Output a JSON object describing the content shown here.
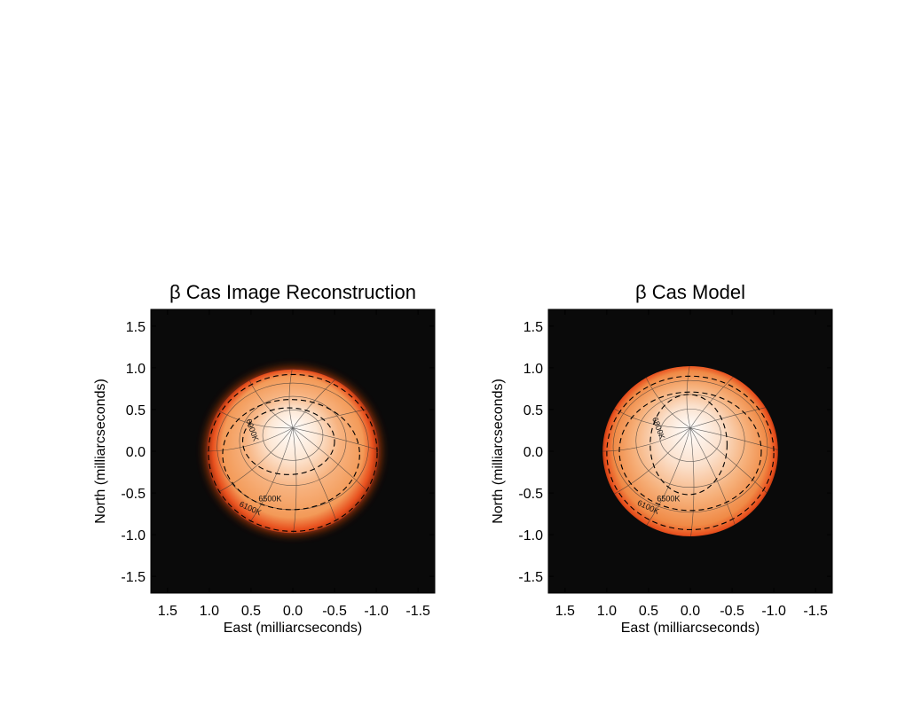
{
  "chart_data": [
    {
      "type": "heatmap",
      "title": "β Cas Image Reconstruction",
      "xlabel": "East (milliarcseconds)",
      "ylabel": "North (milliarcseconds)",
      "xlim": [
        1.7,
        -1.7
      ],
      "ylim": [
        -1.7,
        1.7
      ],
      "x_ticks": [
        1.5,
        1.0,
        0.5,
        0.0,
        -0.5,
        -1.0,
        -1.5
      ],
      "x_tick_labels": [
        "1.5",
        "1.0",
        "0.5",
        "0.0",
        "-0.5",
        "-1.0",
        "-1.5"
      ],
      "y_ticks": [
        1.5,
        1.0,
        0.5,
        0.0,
        -0.5,
        -1.0,
        -1.5
      ],
      "y_tick_labels": [
        "1.5",
        "1.0",
        "0.5",
        "0.0",
        "-0.5",
        "-1.0",
        "-1.5"
      ],
      "disk": {
        "center": [
          0.0,
          0.0
        ],
        "radius_x": 1.03,
        "radius_y": 0.98,
        "limb_blur": true
      },
      "pole": [
        0.0,
        0.28
      ],
      "contours": [
        {
          "label": "6900K",
          "cx": 0.05,
          "cy": 0.12,
          "rx": 0.55,
          "ry": 0.4
        },
        {
          "label": "6500K",
          "cx": 0.02,
          "cy": -0.04,
          "rx": 0.82,
          "ry": 0.66
        },
        {
          "label": "6100K",
          "cx": 0.0,
          "cy": -0.02,
          "rx": 1.01,
          "ry": 0.94
        }
      ],
      "colors": {
        "background": "#0a0a0a",
        "limb": "#e8501e",
        "mid": "#f6a060",
        "center": "#ffffff"
      }
    },
    {
      "type": "heatmap",
      "title": "β Cas Model",
      "xlabel": "East (milliarcseconds)",
      "ylabel": "North (milliarcseconds)",
      "xlim": [
        1.7,
        -1.7
      ],
      "ylim": [
        -1.7,
        1.7
      ],
      "x_ticks": [
        1.5,
        1.0,
        0.5,
        0.0,
        -0.5,
        -1.0,
        -1.5
      ],
      "x_tick_labels": [
        "1.5",
        "1.0",
        "0.5",
        "0.0",
        "-0.5",
        "-1.0",
        "-1.5"
      ],
      "y_ticks": [
        1.5,
        1.0,
        0.5,
        0.0,
        -0.5,
        -1.0,
        -1.5
      ],
      "y_tick_labels": [
        "1.5",
        "1.0",
        "0.5",
        "0.0",
        "-0.5",
        "-1.0",
        "-1.5"
      ],
      "disk": {
        "center": [
          0.0,
          0.0
        ],
        "radius_x": 1.05,
        "radius_y": 1.02,
        "limb_blur": false
      },
      "pole": [
        0.0,
        0.28
      ],
      "contours": [
        {
          "label": "6800K",
          "cx": 0.02,
          "cy": 0.08,
          "rx": 0.46,
          "ry": 0.6
        },
        {
          "label": "6500K",
          "cx": 0.0,
          "cy": 0.0,
          "rx": 0.85,
          "ry": 0.71
        },
        {
          "label": "6100K",
          "cx": 0.0,
          "cy": -0.02,
          "rx": 1.0,
          "ry": 0.92
        }
      ],
      "colors": {
        "background": "#0a0a0a",
        "limb": "#e8501e",
        "mid": "#f6a060",
        "center": "#ffffff"
      }
    }
  ]
}
